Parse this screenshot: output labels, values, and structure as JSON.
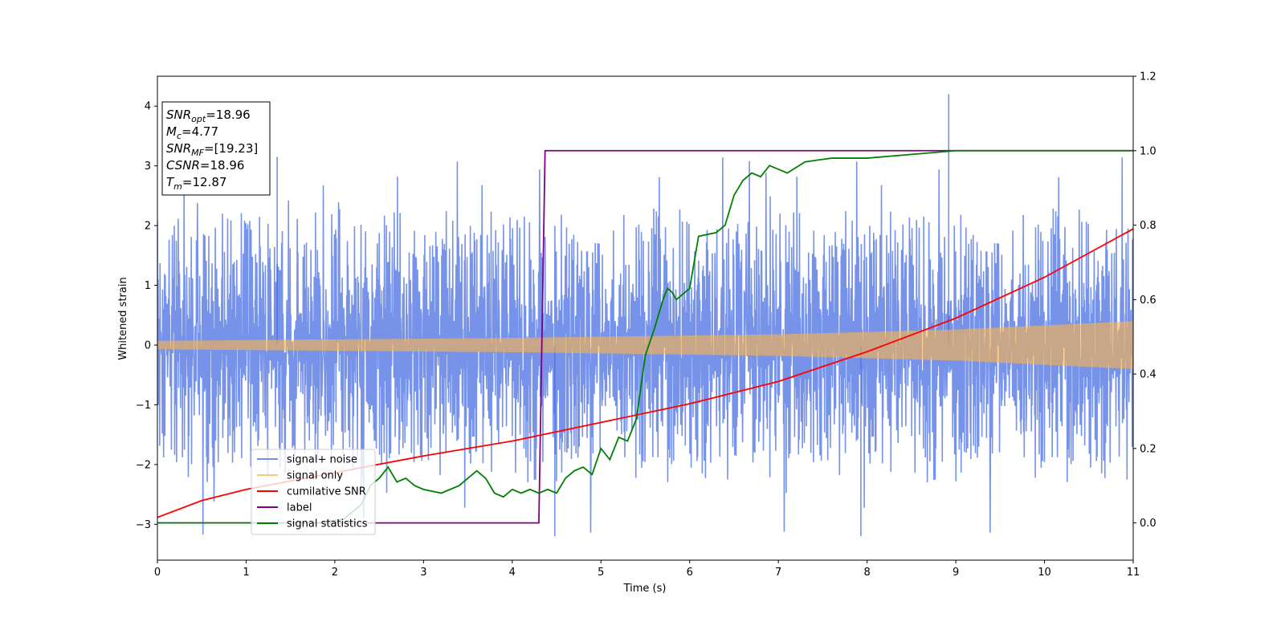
{
  "chart_data": {
    "type": "line",
    "xlabel": "Time (s)",
    "ylabel": "Whitened strain",
    "xlim": [
      0,
      11
    ],
    "ylim": [
      -3.6,
      4.5
    ],
    "y2lim": [
      -0.1,
      1.2
    ],
    "xticks": [
      "0",
      "1",
      "2",
      "3",
      "4",
      "5",
      "6",
      "7",
      "8",
      "9",
      "10",
      "11"
    ],
    "yticks": [
      "−3",
      "−2",
      "−1",
      "0",
      "1",
      "2",
      "3",
      "4"
    ],
    "y2ticks": [
      "0.0",
      "0.2",
      "0.4",
      "0.6",
      "0.8",
      "1.0",
      "1.2"
    ],
    "grid": false,
    "legend_position": "lower-left",
    "annotation": {
      "lines": [
        {
          "main": "SNR",
          "sub": "opt",
          "value": "=18.96"
        },
        {
          "main": "M",
          "sub": "c",
          "value": "=4.77"
        },
        {
          "main": "SNR",
          "sub": "MF",
          "value": "=[19.23]"
        },
        {
          "main": "CSNR",
          "sub": "",
          "value": "=18.96"
        },
        {
          "main": "T",
          "sub": "m",
          "value": "=12.87"
        }
      ]
    },
    "series": [
      {
        "name": "signal+ noise",
        "color": "#4169e1",
        "axis": "left",
        "style": "noise band",
        "typical_range": [
          -1.6,
          1.9
        ],
        "spike_range": [
          -3.2,
          4.2
        ]
      },
      {
        "name": "signal only",
        "color": "#ffb347",
        "axis": "left",
        "style": "oscillation envelope",
        "envelope": {
          "x": [
            0,
            4,
            7,
            9,
            11
          ],
          "amp": [
            0.07,
            0.12,
            0.18,
            0.26,
            0.4
          ]
        }
      },
      {
        "name": "cumilative SNR",
        "color": "#ff0000",
        "axis": "right",
        "x": [
          0,
          0.5,
          1,
          2,
          3,
          4,
          5,
          6,
          7,
          8,
          9,
          10,
          11
        ],
        "y": [
          0.015,
          0.06,
          0.09,
          0.135,
          0.18,
          0.22,
          0.27,
          0.32,
          0.38,
          0.46,
          0.55,
          0.66,
          0.79
        ]
      },
      {
        "name": "label",
        "color": "#800080",
        "axis": "right",
        "x": [
          0,
          4.3,
          4.37,
          11
        ],
        "y": [
          0,
          0,
          1,
          1
        ]
      },
      {
        "name": "signal statistics",
        "color": "#008000",
        "axis": "right",
        "x": [
          0,
          1.8,
          2.1,
          2.3,
          2.4,
          2.5,
          2.6,
          2.7,
          2.8,
          2.9,
          3.0,
          3.2,
          3.4,
          3.6,
          3.7,
          3.8,
          3.9,
          4.0,
          4.1,
          4.2,
          4.3,
          4.4,
          4.5,
          4.6,
          4.7,
          4.8,
          4.9,
          5.0,
          5.1,
          5.2,
          5.3,
          5.4,
          5.5,
          5.6,
          5.7,
          5.75,
          5.8,
          5.85,
          5.9,
          6.0,
          6.1,
          6.3,
          6.4,
          6.5,
          6.6,
          6.7,
          6.8,
          6.9,
          7.0,
          7.1,
          7.3,
          7.6,
          8.0,
          8.5,
          9.0,
          11
        ],
        "y": [
          0.0,
          0.0,
          0.01,
          0.05,
          0.1,
          0.12,
          0.15,
          0.11,
          0.12,
          0.1,
          0.09,
          0.08,
          0.1,
          0.14,
          0.12,
          0.08,
          0.07,
          0.09,
          0.08,
          0.09,
          0.08,
          0.09,
          0.08,
          0.12,
          0.14,
          0.15,
          0.13,
          0.2,
          0.17,
          0.23,
          0.22,
          0.28,
          0.45,
          0.52,
          0.6,
          0.63,
          0.62,
          0.6,
          0.61,
          0.63,
          0.77,
          0.78,
          0.8,
          0.88,
          0.92,
          0.94,
          0.93,
          0.96,
          0.95,
          0.94,
          0.97,
          0.98,
          0.98,
          0.99,
          1.0,
          1.0
        ]
      }
    ]
  }
}
